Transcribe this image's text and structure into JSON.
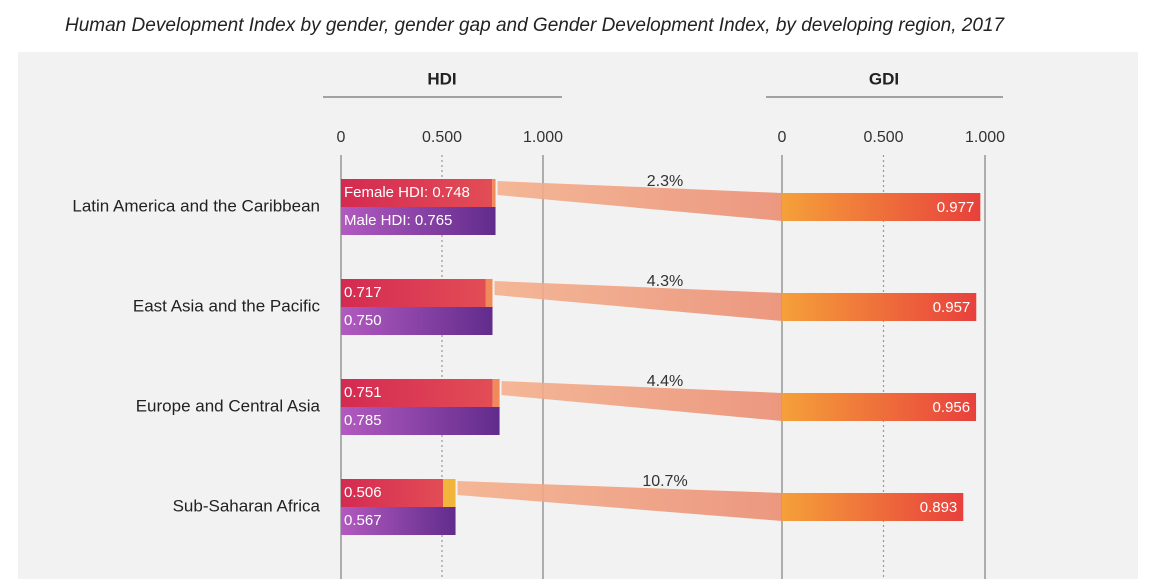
{
  "chart_data": {
    "type": "hdi-gdi",
    "title": "Human Development Index by gender, gender gap and Gender Development Index, by developing region, 2017",
    "categories": [
      "Latin America and the Caribbean",
      "East Asia and the Pacific",
      "Europe and Central Asia",
      "Sub-Saharan Africa"
    ],
    "hdi": {
      "title": "HDI",
      "xlim": [
        0,
        1
      ],
      "xticks": [
        0,
        {
          "value": 0.5,
          "label": "0.500"
        },
        {
          "value": 1,
          "label": "1.000"
        }
      ],
      "series": [
        {
          "color": "#d6324f",
          "values": [
            0.748,
            0.717,
            0.751,
            0.506
          ],
          "value_labels": [
            "Female HDI: 0.748",
            "0.717",
            "0.751",
            "0.506"
          ]
        },
        {
          "color": "#7b3a9e",
          "values": [
            0.765,
            0.75,
            0.785,
            0.567
          ],
          "value_labels": [
            "Male HDI: 0.765",
            "0.750",
            "0.785",
            "0.567"
          ]
        }
      ]
    },
    "gap": {
      "color": "#f0a283",
      "values": [
        2.3,
        4.3,
        4.4,
        10.7
      ],
      "value_labels": [
        "2.3%",
        "4.3%",
        "4.4%",
        "10.7%"
      ]
    },
    "gdi": {
      "title": "GDI",
      "xlim": [
        0,
        1
      ],
      "xticks": [
        0,
        {
          "value": 0.5,
          "label": "0.500"
        },
        {
          "value": 1,
          "label": "1.000"
        }
      ],
      "color": "#ec6a3c",
      "values": [
        0.977,
        0.957,
        0.956,
        0.893
      ]
    }
  }
}
